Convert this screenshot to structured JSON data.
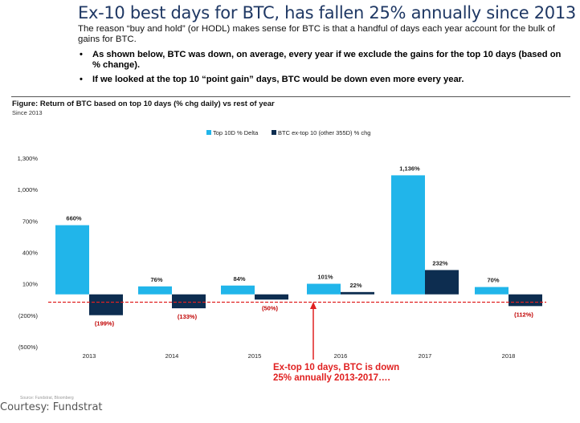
{
  "slide": {
    "title": "Ex-10 best days for BTC, has fallen 25% annually since 2013",
    "intro": "The reason “buy and hold” (or HODL) makes sense for BTC is that a handful of days each year account for the bulk of gains for BTC.",
    "bullets": [
      "As shown below, BTC was down, on average, every year if we exclude the gains for the top 10 days (based on % change).",
      "If we looked at the top 10 “point gain” days, BTC  would be down even more every year."
    ],
    "figure_title": "Figure: Return of BTC based on top 10 days (% chg daily) vs rest of year",
    "figure_subtitle": "Since 2013",
    "annotation": "Ex-top 10 days, BTC is down 25% annually 2013-2017….",
    "source": "Source: Fundstrat, Bloomberg",
    "courtesy": "Courtesy: Fundstrat"
  },
  "colors": {
    "title": "#1f3864",
    "series_top10": "#21b5ea",
    "series_ex_top10": "#0d2d50",
    "reference_line": "#e02020",
    "negative_label": "#c00000"
  },
  "chart_data": {
    "type": "bar",
    "title": "Return of BTC based on top 10 days (% chg daily) vs rest of year",
    "xlabel": "",
    "ylabel": "",
    "categories": [
      "2013",
      "2014",
      "2015",
      "2016",
      "2017",
      "2018"
    ],
    "series": [
      {
        "name": "Top 10D % Delta",
        "values": [
          660,
          76,
          84,
          101,
          1136,
          70
        ],
        "labels": [
          "660%",
          "76%",
          "84%",
          "101%",
          "1,136%",
          "70%"
        ]
      },
      {
        "name": "BTC ex-top 10 (other 355D) % chg",
        "values": [
          -199,
          -133,
          -50,
          22,
          232,
          -112
        ],
        "labels": [
          "(199%)",
          "(133%)",
          "(50%)",
          "22%",
          "232%",
          "(112%)"
        ]
      }
    ],
    "yticks": [
      1300,
      1000,
      700,
      400,
      100,
      -200,
      -500
    ],
    "ytick_labels": [
      "1,300%",
      "1,000%",
      "700%",
      "400%",
      "100%",
      "(200%)",
      "(500%)"
    ],
    "ylim": [
      -500,
      1300
    ],
    "reference_line": {
      "value": -75,
      "style": "dashed"
    },
    "legend": "top",
    "grid": false
  }
}
